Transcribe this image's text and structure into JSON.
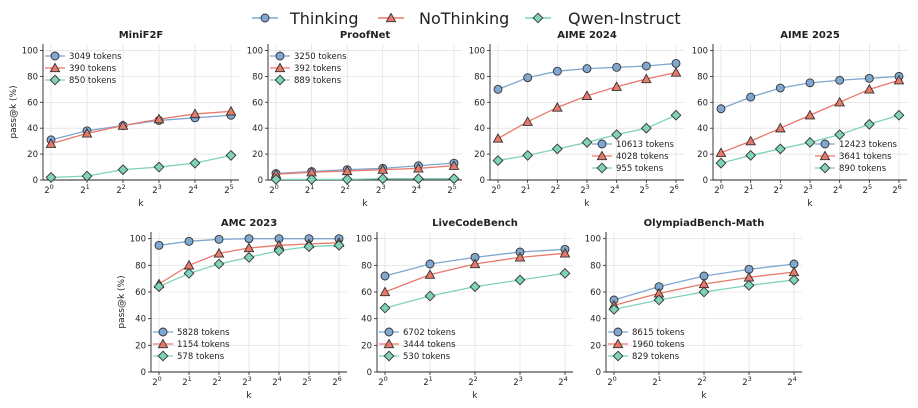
{
  "figure": {
    "legend": [
      "Thinking",
      "NoThinking",
      "Qwen-Instruct"
    ],
    "colors": {
      "thinking": "#7fa7d0",
      "nothinking": "#e8796a",
      "qwen": "#7ed3b8",
      "grid": "#d9d9d9",
      "axis": "#222222"
    }
  },
  "chart_data": [
    {
      "type": "line",
      "title": "MiniF2F",
      "xlabel": "k",
      "ylabel": "pass@k (%)",
      "ylim": [
        0,
        105
      ],
      "yticks": [
        0,
        20,
        40,
        60,
        80,
        100
      ],
      "x": [
        "2^0",
        "2^1",
        "2^2",
        "2^3",
        "2^4",
        "2^5"
      ],
      "legend_position": "top-left",
      "series": [
        {
          "name": "Thinking",
          "tokens": "3049 tokens",
          "values": [
            31,
            38,
            42,
            46,
            48,
            50
          ]
        },
        {
          "name": "NoThinking",
          "tokens": "390 tokens",
          "values": [
            28,
            36,
            42,
            47,
            51,
            53
          ]
        },
        {
          "name": "Qwen-Instruct",
          "tokens": "850 tokens",
          "values": [
            2,
            3,
            8,
            10,
            13,
            19
          ]
        }
      ]
    },
    {
      "type": "line",
      "title": "ProofNet",
      "xlabel": "k",
      "ylabel": "",
      "ylim": [
        0,
        105
      ],
      "yticks": [
        0,
        20,
        40,
        60,
        80,
        100
      ],
      "x": [
        "2^0",
        "2^1",
        "2^2",
        "2^3",
        "2^4",
        "2^5"
      ],
      "legend_position": "top-left",
      "series": [
        {
          "name": "Thinking",
          "tokens": "3250 tokens",
          "values": [
            5,
            6.5,
            8,
            9,
            11,
            13
          ]
        },
        {
          "name": "NoThinking",
          "tokens": "392 tokens",
          "values": [
            4.5,
            6,
            7,
            8,
            9,
            11
          ]
        },
        {
          "name": "Qwen-Instruct",
          "tokens": "889 tokens",
          "values": [
            0.5,
            0.5,
            0.5,
            1,
            1,
            1
          ]
        }
      ]
    },
    {
      "type": "line",
      "title": "AIME 2024",
      "xlabel": "k",
      "ylabel": "",
      "ylim": [
        0,
        105
      ],
      "yticks": [
        0,
        20,
        40,
        60,
        80,
        100
      ],
      "x": [
        "2^0",
        "2^1",
        "2^2",
        "2^3",
        "2^4",
        "2^5",
        "2^6"
      ],
      "legend_position": "bottom-right",
      "series": [
        {
          "name": "Thinking",
          "tokens": "10613 tokens",
          "values": [
            70,
            79,
            84,
            86,
            87,
            88,
            90
          ]
        },
        {
          "name": "NoThinking",
          "tokens": "4028 tokens",
          "values": [
            32,
            45,
            56,
            65,
            72,
            78,
            83
          ]
        },
        {
          "name": "Qwen-Instruct",
          "tokens": "955 tokens",
          "values": [
            15,
            19,
            24,
            29,
            35,
            40,
            50
          ]
        }
      ]
    },
    {
      "type": "line",
      "title": "AIME 2025",
      "xlabel": "k",
      "ylabel": "",
      "ylim": [
        0,
        105
      ],
      "yticks": [
        0,
        20,
        40,
        60,
        80,
        100
      ],
      "x": [
        "2^0",
        "2^1",
        "2^2",
        "2^3",
        "2^4",
        "2^5",
        "2^6"
      ],
      "legend_position": "bottom-right",
      "series": [
        {
          "name": "Thinking",
          "tokens": "12423 tokens",
          "values": [
            55,
            64,
            71,
            75,
            77,
            78.5,
            80
          ]
        },
        {
          "name": "NoThinking",
          "tokens": "3641 tokens",
          "values": [
            21,
            30,
            40,
            50,
            60,
            70,
            77
          ]
        },
        {
          "name": "Qwen-Instruct",
          "tokens": "890 tokens",
          "values": [
            13,
            19,
            24,
            29,
            35,
            43,
            50
          ]
        }
      ]
    },
    {
      "type": "line",
      "title": "AMC 2023",
      "xlabel": "k",
      "ylabel": "pass@k (%)",
      "ylim": [
        0,
        105
      ],
      "yticks": [
        0,
        20,
        40,
        60,
        80,
        100
      ],
      "x": [
        "2^0",
        "2^1",
        "2^2",
        "2^3",
        "2^4",
        "2^5",
        "2^6"
      ],
      "legend_position": "bottom-left",
      "series": [
        {
          "name": "Thinking",
          "tokens": "5828 tokens",
          "values": [
            95,
            98,
            99.5,
            100,
            100,
            100,
            100
          ]
        },
        {
          "name": "NoThinking",
          "tokens": "1154 tokens",
          "values": [
            66,
            80,
            89,
            93,
            95,
            96,
            97
          ]
        },
        {
          "name": "Qwen-Instruct",
          "tokens": "578 tokens",
          "values": [
            64,
            74,
            81,
            86,
            91,
            94,
            95
          ]
        }
      ]
    },
    {
      "type": "line",
      "title": "LiveCodeBench",
      "xlabel": "k",
      "ylabel": "",
      "ylim": [
        0,
        105
      ],
      "yticks": [
        0,
        20,
        40,
        60,
        80,
        100
      ],
      "x": [
        "2^0",
        "2^1",
        "2^2",
        "2^3",
        "2^4"
      ],
      "legend_position": "bottom-left",
      "series": [
        {
          "name": "Thinking",
          "tokens": "6702 tokens",
          "values": [
            72,
            81,
            86,
            90,
            92
          ]
        },
        {
          "name": "NoThinking",
          "tokens": "3444 tokens",
          "values": [
            60,
            73,
            81,
            86,
            89
          ]
        },
        {
          "name": "Qwen-Instruct",
          "tokens": "530 tokens",
          "values": [
            48,
            57,
            64,
            69,
            74
          ]
        }
      ]
    },
    {
      "type": "line",
      "title": "OlympiadBench-Math",
      "xlabel": "k",
      "ylabel": "",
      "ylim": [
        0,
        105
      ],
      "yticks": [
        0,
        20,
        40,
        60,
        80,
        100
      ],
      "x": [
        "2^0",
        "2^1",
        "2^2",
        "2^3",
        "2^4"
      ],
      "legend_position": "bottom-left",
      "series": [
        {
          "name": "Thinking",
          "tokens": "8615 tokens",
          "values": [
            54,
            64,
            72,
            77,
            81
          ]
        },
        {
          "name": "NoThinking",
          "tokens": "1960 tokens",
          "values": [
            50,
            59,
            66,
            71,
            75
          ]
        },
        {
          "name": "Qwen-Instruct",
          "tokens": "829 tokens",
          "values": [
            47,
            54,
            60,
            65,
            69
          ]
        }
      ]
    }
  ]
}
